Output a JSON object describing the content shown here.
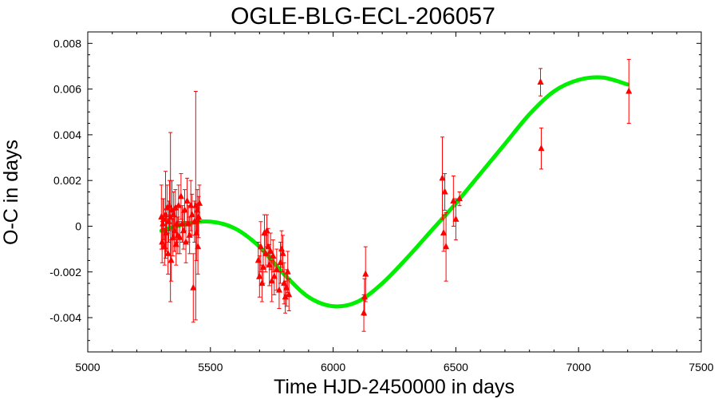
{
  "chart_data": {
    "type": "scatter",
    "title": "OGLE-BLG-ECL-206057",
    "xlabel": "Time HJD-2450000 in days",
    "ylabel": "O-C in days",
    "xlim": [
      5000,
      7500
    ],
    "ylim": [
      -0.0055,
      0.0085
    ],
    "xticks": [
      5000,
      5500,
      6000,
      6500,
      7000,
      7500
    ],
    "xtick_labels": [
      "5000",
      "5500",
      "6000",
      "6500",
      "7000",
      "7500"
    ],
    "yticks": [
      -0.004,
      -0.002,
      0,
      0.002,
      0.004,
      0.006,
      0.008
    ],
    "ytick_labels": [
      "-0.004",
      "-0.002",
      "0",
      "0.002",
      "0.004",
      "0.006",
      "0.008"
    ],
    "grid": false,
    "series": [
      {
        "kind": "points-with-errorbars",
        "color": "#ff0000",
        "marker": "triangle",
        "points": [
          {
            "x": 5300,
            "y": 0.0004,
            "err": 0.0014
          },
          {
            "x": 5303,
            "y": -0.0007,
            "err": 0.0009
          },
          {
            "x": 5306,
            "y": 0.0001,
            "err": 0.0011
          },
          {
            "x": 5310,
            "y": 0.0003,
            "err": 0.0009
          },
          {
            "x": 5313,
            "y": -0.0009,
            "err": 0.0008
          },
          {
            "x": 5317,
            "y": 0.0005,
            "err": 0.0019
          },
          {
            "x": 5320,
            "y": -0.0003,
            "err": 0.0008
          },
          {
            "x": 5323,
            "y": 0.0008,
            "err": 0.001
          },
          {
            "x": 5327,
            "y": -0.0012,
            "err": 0.0009
          },
          {
            "x": 5330,
            "y": 0.0002,
            "err": 0.0009
          },
          {
            "x": 5333,
            "y": 0.0009,
            "err": 0.0011
          },
          {
            "x": 5337,
            "y": 0.0004,
            "err": 0.0037
          },
          {
            "x": 5340,
            "y": -0.0015,
            "err": 0.0009
          },
          {
            "x": 5343,
            "y": 0.0007,
            "err": 0.0013
          },
          {
            "x": 5347,
            "y": -0.0005,
            "err": 0.0008
          },
          {
            "x": 5350,
            "y": 0.0005,
            "err": 0.001
          },
          {
            "x": 5353,
            "y": -0.0002,
            "err": 0.0009
          },
          {
            "x": 5357,
            "y": 0.0008,
            "err": 0.0008
          },
          {
            "x": 5360,
            "y": -0.0008,
            "err": 0.0009
          },
          {
            "x": 5363,
            "y": 0.0001,
            "err": 0.0008
          },
          {
            "x": 5367,
            "y": -0.0004,
            "err": 0.0008
          },
          {
            "x": 5370,
            "y": 0.0009,
            "err": 0.0009
          },
          {
            "x": 5375,
            "y": -0.0005,
            "err": 0.0007
          },
          {
            "x": 5380,
            "y": 0.0013,
            "err": 0.001
          },
          {
            "x": 5385,
            "y": 0.0001,
            "err": 0.0008
          },
          {
            "x": 5390,
            "y": -0.0002,
            "err": 0.0008
          },
          {
            "x": 5395,
            "y": 0.0007,
            "err": 0.0009
          },
          {
            "x": 5400,
            "y": -0.0007,
            "err": 0.0009
          },
          {
            "x": 5405,
            "y": 0.0011,
            "err": 0.001
          },
          {
            "x": 5410,
            "y": 0.0001,
            "err": 0.0008
          },
          {
            "x": 5415,
            "y": -0.0004,
            "err": 0.0008
          },
          {
            "x": 5420,
            "y": 0.0009,
            "err": 0.0011
          },
          {
            "x": 5425,
            "y": 0.0005,
            "err": 0.0009
          },
          {
            "x": 5430,
            "y": -0.0027,
            "err": 0.0015
          },
          {
            "x": 5435,
            "y": 0.0002,
            "err": 0.0009
          },
          {
            "x": 5440,
            "y": 0.0009,
            "err": 0.005
          },
          {
            "x": 5443,
            "y": -0.0003,
            "err": 0.0012
          },
          {
            "x": 5446,
            "y": 0.0007,
            "err": 0.0009
          },
          {
            "x": 5449,
            "y": -0.0009,
            "err": 0.0012
          },
          {
            "x": 5452,
            "y": 0.0004,
            "err": 0.0009
          },
          {
            "x": 5455,
            "y": 0.001,
            "err": 0.0008
          },
          {
            "x": 5695,
            "y": -0.0015,
            "err": 0.0008
          },
          {
            "x": 5700,
            "y": -0.0022,
            "err": 0.0009
          },
          {
            "x": 5705,
            "y": -0.0009,
            "err": 0.0011
          },
          {
            "x": 5710,
            "y": -0.0025,
            "err": 0.0008
          },
          {
            "x": 5715,
            "y": -0.0018,
            "err": 0.0007
          },
          {
            "x": 5720,
            "y": -0.0003,
            "err": 0.0008
          },
          {
            "x": 5725,
            "y": -0.0012,
            "err": 0.0008
          },
          {
            "x": 5730,
            "y": -0.0002,
            "err": 0.0007
          },
          {
            "x": 5735,
            "y": -0.0009,
            "err": 0.0008
          },
          {
            "x": 5740,
            "y": -0.0017,
            "err": 0.0009
          },
          {
            "x": 5745,
            "y": -0.0011,
            "err": 0.0008
          },
          {
            "x": 5750,
            "y": -0.0024,
            "err": 0.0009
          },
          {
            "x": 5755,
            "y": -0.0013,
            "err": 0.0007
          },
          {
            "x": 5760,
            "y": -0.0022,
            "err": 0.0008
          },
          {
            "x": 5770,
            "y": -0.0019,
            "err": 0.0009
          },
          {
            "x": 5780,
            "y": -0.0028,
            "err": 0.0008
          },
          {
            "x": 5785,
            "y": -0.0016,
            "err": 0.0009
          },
          {
            "x": 5790,
            "y": -0.001,
            "err": 0.0008
          },
          {
            "x": 5795,
            "y": -0.0012,
            "err": 0.0008
          },
          {
            "x": 5800,
            "y": -0.0025,
            "err": 0.0009
          },
          {
            "x": 5805,
            "y": -0.0031,
            "err": 0.0007
          },
          {
            "x": 5810,
            "y": -0.0027,
            "err": 0.0008
          },
          {
            "x": 5815,
            "y": -0.002,
            "err": 0.0009
          },
          {
            "x": 5820,
            "y": -0.003,
            "err": 0.0007
          },
          {
            "x": 6125,
            "y": -0.0038,
            "err": 0.0008
          },
          {
            "x": 6128,
            "y": -0.0031,
            "err": 0.0008
          },
          {
            "x": 6132,
            "y": -0.0021,
            "err": 0.0012
          },
          {
            "x": 6445,
            "y": 0.0021,
            "err": 0.0018
          },
          {
            "x": 6450,
            "y": -0.0003,
            "err": 0.0008
          },
          {
            "x": 6455,
            "y": 0.0015,
            "err": 0.0008
          },
          {
            "x": 6460,
            "y": -0.0009,
            "err": 0.0015
          },
          {
            "x": 6490,
            "y": 0.0011,
            "err": 0.0011
          },
          {
            "x": 6500,
            "y": 0.0003,
            "err": 0.0009
          },
          {
            "x": 6515,
            "y": 0.0012,
            "err": 0.0003
          },
          {
            "x": 6845,
            "y": 0.0063,
            "err": 0.0006
          },
          {
            "x": 6848,
            "y": 0.0034,
            "err": 0.0009
          },
          {
            "x": 7205,
            "y": 0.0059,
            "err": 0.0014
          }
        ]
      },
      {
        "kind": "fit-curve",
        "color": "#00ee00",
        "x": [
          5300,
          5400,
          5500,
          5600,
          5700,
          5800,
          5900,
          6000,
          6100,
          6200,
          6300,
          6400,
          6500,
          6600,
          6700,
          6800,
          6900,
          7000,
          7100,
          7200
        ],
        "y": [
          -0.0002,
          0.0001,
          0.0002,
          -0.0001,
          -0.0009,
          -0.0021,
          -0.0031,
          -0.0035,
          -0.0033,
          -0.0025,
          -0.0014,
          -0.0002,
          0.001,
          0.0023,
          0.0036,
          0.0049,
          0.0059,
          0.0064,
          0.0065,
          0.0062
        ]
      }
    ]
  }
}
